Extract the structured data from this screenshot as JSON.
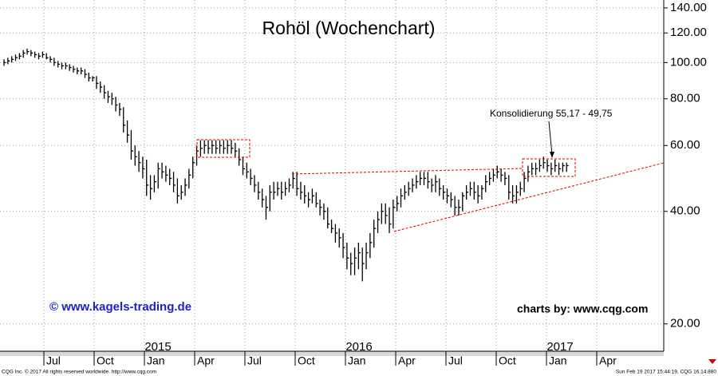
{
  "chart_data": {
    "type": "ohlc",
    "title": "Rohöl (Wochenchart)",
    "annotation": "Konsolidierung 55,17 - 49,75",
    "watermark": "© www.kagels-trading.de",
    "credit": "charts by: www.cqg.com",
    "copyright": "CQG Inc. © 2017 All rights reserved worldwide. http://www.cqg.com",
    "timestamp": "Sun Feb 19 2017 15:44:19, CQG 16.14.880",
    "color": "#000000",
    "log_y": true,
    "grid": true,
    "xlim": [
      4.38,
      44
    ],
    "ylim": [
      16.9,
      147
    ],
    "xticks": [
      {
        "value": 7,
        "label": "Jul"
      },
      {
        "value": 10,
        "label": "Oct"
      },
      {
        "value": 13,
        "label": "Jan"
      },
      {
        "value": 16,
        "label": "Apr"
      },
      {
        "value": 19,
        "label": "Jul"
      },
      {
        "value": 22,
        "label": "Oct"
      },
      {
        "value": 25,
        "label": "Jan"
      },
      {
        "value": 28,
        "label": "Apr"
      },
      {
        "value": 31,
        "label": "Jul"
      },
      {
        "value": 34,
        "label": "Oct"
      },
      {
        "value": 37,
        "label": "Jan"
      },
      {
        "value": 40,
        "label": "Apr"
      }
    ],
    "year_ticks": [
      {
        "value": 13,
        "label": "2015"
      },
      {
        "value": 25,
        "label": "2016"
      },
      {
        "value": 37,
        "label": "2017"
      }
    ],
    "yticks": [
      {
        "value": 140,
        "label": "140.00"
      },
      {
        "value": 120,
        "label": "120.00"
      },
      {
        "value": 100,
        "label": "100.00"
      },
      {
        "value": 80,
        "label": "80.00"
      },
      {
        "value": 60,
        "label": "60.00"
      },
      {
        "value": 40,
        "label": "40.00"
      },
      {
        "value": 20,
        "label": "20.00"
      }
    ],
    "x": [
      4.62,
      4.85,
      5.08,
      5.31,
      5.54,
      5.77,
      6.0,
      6.23,
      6.46,
      6.69,
      6.92,
      7.15,
      7.38,
      7.61,
      7.84,
      8.07,
      8.3,
      8.53,
      8.76,
      8.99,
      9.22,
      9.45,
      9.68,
      9.91,
      10.14,
      10.37,
      10.6,
      10.83,
      11.06,
      11.29,
      11.52,
      11.75,
      11.98,
      12.21,
      12.44,
      12.67,
      12.9,
      13.13,
      13.36,
      13.59,
      13.82,
      14.05,
      14.28,
      14.51,
      14.74,
      14.97,
      15.2,
      15.43,
      15.66,
      15.89,
      16.12,
      16.35,
      16.58,
      16.81,
      17.04,
      17.27,
      17.5,
      17.73,
      17.96,
      18.19,
      18.42,
      18.65,
      18.88,
      19.11,
      19.34,
      19.57,
      19.8,
      20.03,
      20.26,
      20.49,
      20.72,
      20.95,
      21.18,
      21.41,
      21.64,
      21.87,
      22.1,
      22.33,
      22.56,
      22.79,
      23.02,
      23.25,
      23.48,
      23.71,
      23.94,
      24.17,
      24.4,
      24.63,
      24.86,
      25.09,
      25.32,
      25.55,
      25.78,
      26.01,
      26.24,
      26.47,
      26.7,
      26.93,
      27.16,
      27.39,
      27.62,
      27.85,
      28.08,
      28.31,
      28.54,
      28.77,
      29.0,
      29.23,
      29.46,
      29.69,
      29.92,
      30.15,
      30.38,
      30.61,
      30.84,
      31.07,
      31.3,
      31.53,
      31.76,
      31.99,
      32.22,
      32.45,
      32.68,
      32.91,
      33.14,
      33.37,
      33.6,
      33.83,
      34.06,
      34.29,
      34.52,
      34.75,
      34.98,
      35.21,
      35.44,
      35.67,
      35.9,
      36.13,
      36.36,
      36.59,
      36.82,
      37.05,
      37.28,
      37.51,
      37.74,
      37.97,
      38.2
    ],
    "high": [
      102,
      103,
      104,
      105,
      106,
      108,
      109,
      108,
      107,
      106,
      107,
      106,
      104,
      103,
      101,
      100,
      100,
      99,
      98,
      97,
      97,
      96,
      94,
      92,
      92,
      89,
      87,
      84,
      83,
      81,
      78,
      76,
      70,
      66,
      60,
      58,
      56,
      55,
      50,
      50,
      54,
      54,
      53,
      52,
      51,
      49,
      47,
      49,
      52,
      56,
      60,
      62,
      62,
      62,
      62,
      62,
      62,
      62,
      62,
      62,
      61,
      59,
      56,
      54,
      52,
      50,
      48,
      46,
      44,
      47,
      48,
      48,
      48,
      48,
      49,
      51,
      51,
      48,
      47,
      45,
      46,
      45,
      43,
      42,
      41,
      38,
      37,
      36,
      35,
      33,
      31,
      32,
      33,
      32,
      33,
      35,
      38,
      40,
      42,
      42,
      41,
      43,
      44,
      46,
      47,
      48,
      49,
      50,
      51,
      51,
      51,
      49,
      50,
      49,
      47,
      46,
      45,
      44,
      43,
      45,
      47,
      48,
      48,
      47,
      47,
      50,
      51,
      52,
      53,
      52,
      51,
      50,
      47,
      47,
      48,
      51,
      53,
      54,
      54,
      55,
      56,
      55,
      54,
      55,
      54,
      54,
      54
    ],
    "low": [
      98,
      99,
      100,
      101,
      102,
      103,
      105,
      104,
      103,
      102,
      103,
      102,
      100,
      98,
      97,
      96,
      96,
      95,
      94,
      93,
      93,
      91,
      89,
      89,
      85,
      83,
      80,
      78,
      77,
      74,
      72,
      65,
      61,
      55,
      53,
      51,
      49,
      44,
      43,
      45,
      46,
      49,
      48,
      47,
      45,
      42,
      43,
      44,
      46,
      49,
      53,
      56,
      57,
      57,
      57,
      57,
      57,
      57,
      57,
      57,
      56,
      53,
      50,
      49,
      47,
      45,
      43,
      41,
      38,
      40,
      43,
      44,
      43,
      44,
      45,
      46,
      44,
      43,
      42,
      41,
      42,
      41,
      39,
      38,
      36,
      35,
      33,
      32,
      30,
      28,
      27,
      27,
      28,
      26,
      28,
      30,
      32,
      35,
      37,
      37,
      35,
      36,
      40,
      41,
      43,
      44,
      45,
      46,
      47,
      47,
      46,
      45,
      45,
      44,
      43,
      42,
      41,
      39,
      39,
      40,
      43,
      44,
      43,
      42,
      43,
      45,
      47,
      48,
      49,
      48,
      47,
      43,
      42,
      42,
      44,
      45,
      48,
      50,
      50,
      51,
      52,
      51,
      50,
      51,
      50,
      51,
      51
    ],
    "close": [
      100,
      101,
      102,
      103,
      104,
      106,
      107,
      106,
      105,
      104,
      105,
      103,
      102,
      100,
      99,
      98,
      98,
      97,
      96,
      95,
      95,
      93,
      91,
      91,
      88,
      86,
      83,
      81,
      80,
      77,
      75,
      68,
      64,
      58,
      56,
      54,
      52,
      47,
      46,
      48,
      52,
      51,
      50,
      49,
      47,
      44,
      45,
      47,
      50,
      54,
      58,
      59,
      60,
      59,
      60,
      59,
      60,
      59,
      60,
      59,
      58,
      55,
      52,
      51,
      49,
      47,
      45,
      43,
      41,
      45,
      45,
      46,
      45,
      46,
      47,
      49,
      46,
      45,
      44,
      43,
      44,
      42,
      41,
      40,
      37,
      36,
      35,
      34,
      32,
      30,
      29,
      30,
      31,
      29,
      31,
      33,
      36,
      38,
      40,
      39,
      37,
      41,
      42,
      44,
      45,
      46,
      47,
      48,
      49,
      49,
      48,
      47,
      48,
      46,
      45,
      44,
      43,
      41,
      41,
      44,
      45,
      46,
      45,
      44,
      46,
      48,
      49,
      50,
      51,
      50,
      49,
      45,
      44,
      45,
      46,
      49,
      51,
      52,
      52,
      53,
      54,
      53,
      52,
      53,
      52,
      53,
      53
    ]
  }
}
